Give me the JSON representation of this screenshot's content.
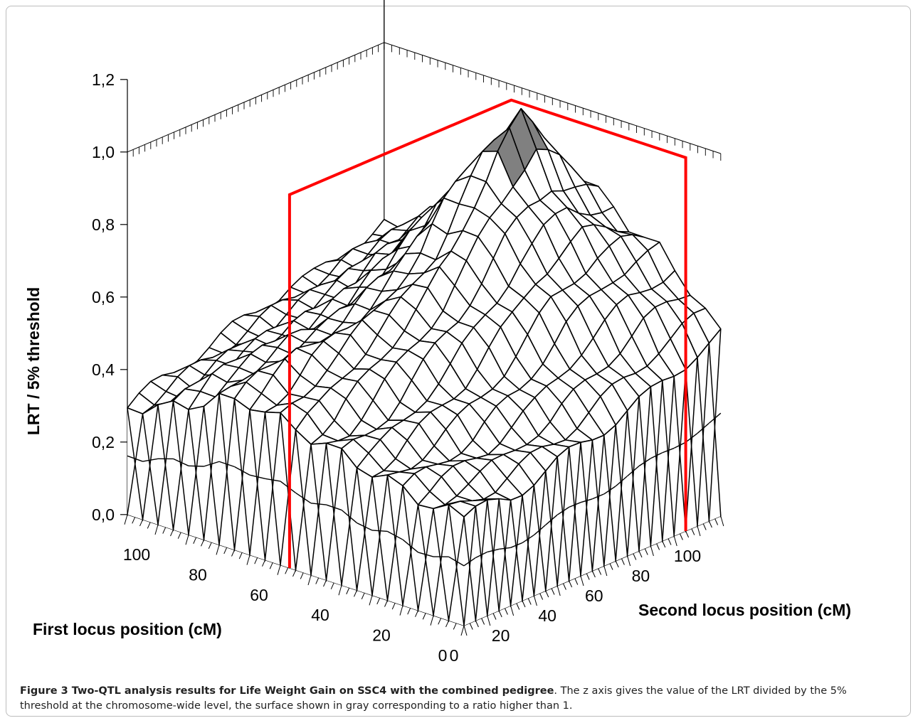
{
  "chart_data": {
    "type": "surface3d",
    "title": "",
    "z_axis": {
      "label": "LRT / 5% threshold",
      "ticks": [
        "0,0",
        "0,2",
        "0,4",
        "0,6",
        "0,8",
        "1,0",
        "1,2"
      ],
      "range": [
        0,
        1.2
      ]
    },
    "x_axis": {
      "label": "First locus position (cM)",
      "ticks": [
        "0",
        "20",
        "40",
        "60",
        "80",
        "100"
      ],
      "range": [
        0,
        110
      ]
    },
    "y_axis": {
      "label": "Second locus position (cM)",
      "ticks": [
        "0",
        "20",
        "40",
        "60",
        "80",
        "100"
      ],
      "range": [
        0,
        110
      ]
    },
    "grid_step_cM": 5,
    "surface_profile": {
      "x": [
        0,
        10,
        20,
        30,
        40,
        50,
        60,
        70,
        80,
        90,
        100,
        110
      ],
      "y": [
        0,
        10,
        20,
        30,
        40,
        50,
        60,
        70,
        80,
        90,
        100,
        110
      ],
      "z": [
        [
          0.3,
          0.3,
          0.3,
          0.32,
          0.34,
          0.36,
          0.38,
          0.4,
          0.42,
          0.45,
          0.48,
          0.5
        ],
        [
          0.3,
          0.32,
          0.33,
          0.35,
          0.38,
          0.4,
          0.44,
          0.48,
          0.52,
          0.56,
          0.58,
          0.6
        ],
        [
          0.32,
          0.34,
          0.36,
          0.38,
          0.42,
          0.46,
          0.52,
          0.58,
          0.62,
          0.66,
          0.68,
          0.68
        ],
        [
          0.34,
          0.36,
          0.4,
          0.44,
          0.48,
          0.54,
          0.6,
          0.68,
          0.72,
          0.75,
          0.74,
          0.72
        ],
        [
          0.36,
          0.38,
          0.42,
          0.48,
          0.54,
          0.6,
          0.68,
          0.76,
          0.82,
          0.86,
          0.82,
          0.78
        ],
        [
          0.38,
          0.4,
          0.46,
          0.52,
          0.58,
          0.64,
          0.72,
          0.84,
          0.95,
          1.02,
          0.94,
          0.84
        ],
        [
          0.4,
          0.44,
          0.5,
          0.54,
          0.58,
          0.64,
          0.7,
          0.8,
          0.88,
          0.92,
          0.86,
          0.8
        ],
        [
          0.42,
          0.46,
          0.5,
          0.52,
          0.54,
          0.58,
          0.62,
          0.68,
          0.74,
          0.76,
          0.74,
          0.72
        ],
        [
          0.4,
          0.44,
          0.46,
          0.48,
          0.48,
          0.5,
          0.54,
          0.58,
          0.62,
          0.64,
          0.64,
          0.64
        ],
        [
          0.36,
          0.4,
          0.42,
          0.44,
          0.44,
          0.46,
          0.48,
          0.5,
          0.54,
          0.56,
          0.58,
          0.6
        ],
        [
          0.32,
          0.34,
          0.36,
          0.38,
          0.4,
          0.42,
          0.44,
          0.46,
          0.48,
          0.5,
          0.52,
          0.54
        ],
        [
          0.3,
          0.32,
          0.34,
          0.36,
          0.38,
          0.4,
          0.42,
          0.44,
          0.44,
          0.46,
          0.48,
          0.5
        ]
      ]
    },
    "highlight": {
      "condition": "ratio > 1",
      "color": "#808080"
    },
    "overlay_box_color": "#ff0000",
    "surface_fill": "#ffffff",
    "grid_line_color": "#000000"
  },
  "caption": {
    "label": "Figure 3 Two-QTL analysis results for Life Weight Gain on SSC4 with the combined pedigree",
    "text": ". The z axis gives the value of the LRT divided by the 5% threshold at the chromosome-wide level, the surface shown in gray corresponding to a ratio higher than 1."
  }
}
